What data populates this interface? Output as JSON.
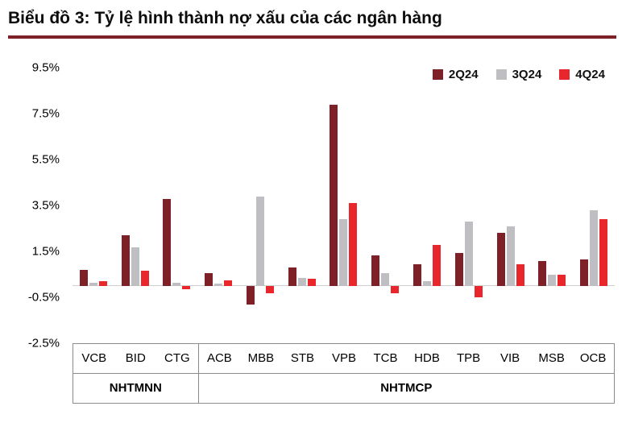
{
  "title": "Biểu đồ 3: Tỷ lệ hình thành nợ xấu của các ngân hàng",
  "colors": {
    "title_rule": "#7d2027",
    "axis_line": "#8c8c8c",
    "zero_line": "#cfcfcf",
    "series_2q24": "#7d2027",
    "series_3q24": "#bfbfc3",
    "series_4q24": "#e8262b"
  },
  "chart_data": {
    "type": "bar",
    "title": "Biểu đồ 3: Tỷ lệ hình thành nợ xấu của các ngân hàng",
    "categories": [
      "VCB",
      "BID",
      "CTG",
      "ACB",
      "MBB",
      "STB",
      "VPB",
      "TCB",
      "HDB",
      "TPB",
      "VIB",
      "MSB",
      "OCB"
    ],
    "category_groups": [
      {
        "label": "NHTMNN",
        "span": 3
      },
      {
        "label": "NHTMCP",
        "span": 10
      }
    ],
    "series": [
      {
        "name": "2Q24",
        "color": "#7d2027",
        "values": [
          0.7,
          2.2,
          3.8,
          0.55,
          -0.8,
          0.8,
          7.9,
          1.35,
          0.95,
          1.45,
          2.3,
          1.1,
          1.15
        ]
      },
      {
        "name": "3Q24",
        "color": "#bfbfc3",
        "values": [
          0.15,
          1.7,
          0.15,
          0.1,
          3.9,
          0.35,
          2.9,
          0.55,
          0.2,
          2.8,
          2.6,
          0.5,
          3.3
        ]
      },
      {
        "name": "4Q24",
        "color": "#e8262b",
        "values": [
          0.2,
          0.65,
          -0.15,
          0.25,
          -0.3,
          0.3,
          3.6,
          -0.3,
          1.8,
          -0.5,
          0.95,
          0.5,
          2.9
        ]
      }
    ],
    "ylim": [
      -2.5,
      9.5
    ],
    "yticks": [
      9.5,
      7.5,
      5.5,
      3.5,
      1.5,
      -0.5,
      -2.5
    ],
    "ytick_format": "percent_one_decimal",
    "grid": false,
    "legend_position": "top-right"
  }
}
